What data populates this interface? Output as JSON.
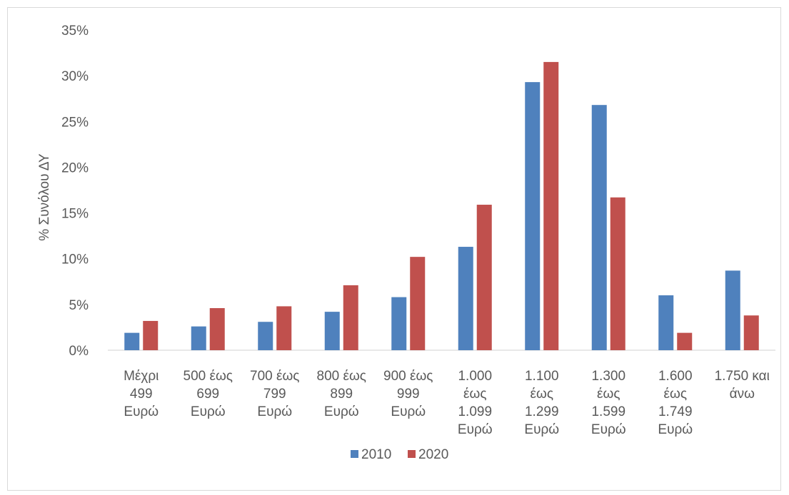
{
  "chart_data": {
    "type": "bar",
    "title": "",
    "xlabel": "",
    "ylabel": "% Συνόλου ΔΥ",
    "ylim": [
      0,
      35
    ],
    "yticks": [
      "0%",
      "5%",
      "10%",
      "15%",
      "20%",
      "25%",
      "30%",
      "35%"
    ],
    "ytick_values": [
      0,
      5,
      10,
      15,
      20,
      25,
      30,
      35
    ],
    "grid": false,
    "legend_position": "bottom",
    "categories": [
      [
        "Μέχρι",
        "499",
        "Ευρώ"
      ],
      [
        "500 έως",
        "699",
        "Ευρώ"
      ],
      [
        "700 έως",
        "799",
        "Ευρώ"
      ],
      [
        "800 έως",
        "899",
        "Ευρώ"
      ],
      [
        "900 έως",
        "999",
        "Ευρώ"
      ],
      [
        "1.000",
        "έως",
        "1.099",
        "Ευρώ"
      ],
      [
        "1.100",
        "έως",
        "1.299",
        "Ευρώ"
      ],
      [
        "1.300",
        "έως",
        "1.599",
        "Ευρώ"
      ],
      [
        "1.600",
        "έως",
        "1.749",
        "Ευρώ"
      ],
      [
        "1.750 και",
        "άνω"
      ]
    ],
    "series": [
      {
        "name": "2010",
        "color": "#4f81bd",
        "values": [
          1.9,
          2.6,
          3.1,
          4.2,
          5.8,
          11.3,
          29.3,
          26.8,
          6.0,
          8.7
        ]
      },
      {
        "name": "2020",
        "color": "#c0504d",
        "values": [
          3.2,
          4.6,
          4.8,
          7.1,
          10.2,
          15.9,
          31.5,
          16.7,
          1.9,
          3.8
        ]
      }
    ]
  }
}
